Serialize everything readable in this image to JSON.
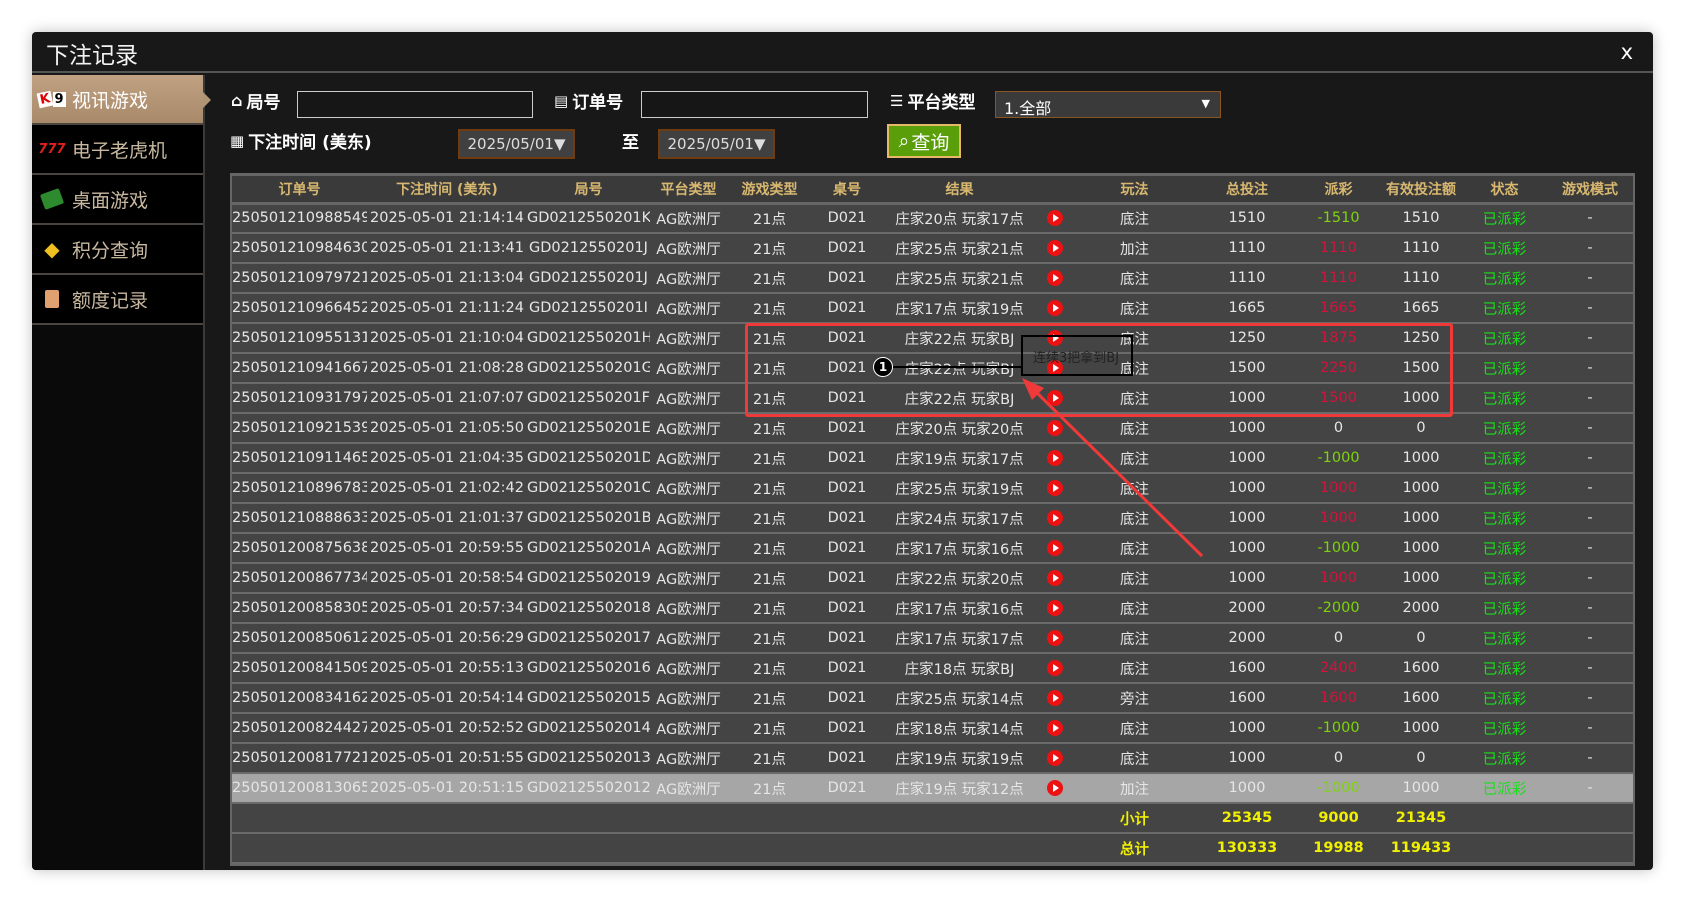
{
  "window": {
    "title": "下注记录",
    "close": "x"
  },
  "sidebar": {
    "items": [
      {
        "label": "视讯游戏",
        "icon": "playing-cards-icon",
        "active": true
      },
      {
        "label": "电子老虎机",
        "icon": "slot-777-icon"
      },
      {
        "label": "桌面游戏",
        "icon": "table-chips-icon"
      },
      {
        "label": "积分查询",
        "icon": "diamond-icon"
      },
      {
        "label": "额度记录",
        "icon": "document-icon"
      }
    ]
  },
  "filters": {
    "round_label": "局号",
    "round_value": "",
    "order_label": "订单号",
    "order_value": "",
    "platform_label": "平台类型",
    "platform_value": "1.全部",
    "time_label": "下注时间 (美东)",
    "date_from": "2025/05/01",
    "to_label": "至",
    "date_to": "2025/05/01",
    "query_label": "查询"
  },
  "table": {
    "headers": [
      "订单号",
      "下注时间 (美东)",
      "局号",
      "平台类型",
      "游戏类型",
      "桌号",
      "结果",
      "",
      "玩法",
      "总投注",
      "派彩",
      "有效投注额",
      "状态",
      "游戏模式"
    ],
    "rows": [
      [
        "250501210988549",
        "2025-05-01 21:14:14",
        "GD0212550201K",
        "AG欧洲厅",
        "21点",
        "D021",
        "庄家20点 玩家17点",
        "底注",
        "1510",
        "-1510",
        "1510",
        "已派彩",
        "-"
      ],
      [
        "250501210984630",
        "2025-05-01 21:13:41",
        "GD0212550201J",
        "AG欧洲厅",
        "21点",
        "D021",
        "庄家25点 玩家21点",
        "加注",
        "1110",
        "1110",
        "1110",
        "已派彩",
        "-"
      ],
      [
        "250501210979721",
        "2025-05-01 21:13:04",
        "GD0212550201J",
        "AG欧洲厅",
        "21点",
        "D021",
        "庄家25点 玩家21点",
        "底注",
        "1110",
        "1110",
        "1110",
        "已派彩",
        "-"
      ],
      [
        "250501210966452",
        "2025-05-01 21:11:24",
        "GD0212550201I",
        "AG欧洲厅",
        "21点",
        "D021",
        "庄家17点 玩家19点",
        "底注",
        "1665",
        "1665",
        "1665",
        "已派彩",
        "-"
      ],
      [
        "250501210955131",
        "2025-05-01 21:10:04",
        "GD0212550201H",
        "AG欧洲厅",
        "21点",
        "D021",
        "庄家22点 玩家BJ",
        "底注",
        "1250",
        "1875",
        "1250",
        "已派彩",
        "-"
      ],
      [
        "250501210941667",
        "2025-05-01 21:08:28",
        "GD0212550201G",
        "AG欧洲厅",
        "21点",
        "D021",
        "庄家22点 玩家BJ",
        "底注",
        "1500",
        "2250",
        "1500",
        "已派彩",
        "-"
      ],
      [
        "250501210931797",
        "2025-05-01 21:07:07",
        "GD0212550201F",
        "AG欧洲厅",
        "21点",
        "D021",
        "庄家22点 玩家BJ",
        "底注",
        "1000",
        "1500",
        "1000",
        "已派彩",
        "-"
      ],
      [
        "250501210921539",
        "2025-05-01 21:05:50",
        "GD0212550201E",
        "AG欧洲厅",
        "21点",
        "D021",
        "庄家20点 玩家20点",
        "底注",
        "1000",
        "0",
        "0",
        "已派彩",
        "-"
      ],
      [
        "250501210911465",
        "2025-05-01 21:04:35",
        "GD0212550201D",
        "AG欧洲厅",
        "21点",
        "D021",
        "庄家19点 玩家17点",
        "底注",
        "1000",
        "-1000",
        "1000",
        "已派彩",
        "-"
      ],
      [
        "250501210896783",
        "2025-05-01 21:02:42",
        "GD0212550201C",
        "AG欧洲厅",
        "21点",
        "D021",
        "庄家25点 玩家19点",
        "底注",
        "1000",
        "1000",
        "1000",
        "已派彩",
        "-"
      ],
      [
        "250501210888633",
        "2025-05-01 21:01:37",
        "GD0212550201B",
        "AG欧洲厅",
        "21点",
        "D021",
        "庄家24点 玩家17点",
        "底注",
        "1000",
        "1000",
        "1000",
        "已派彩",
        "-"
      ],
      [
        "250501200875638",
        "2025-05-01 20:59:55",
        "GD0212550201A",
        "AG欧洲厅",
        "21点",
        "D021",
        "庄家17点 玩家16点",
        "底注",
        "1000",
        "-1000",
        "1000",
        "已派彩",
        "-"
      ],
      [
        "250501200867734",
        "2025-05-01 20:58:54",
        "GD02125502019",
        "AG欧洲厅",
        "21点",
        "D021",
        "庄家22点 玩家20点",
        "底注",
        "1000",
        "1000",
        "1000",
        "已派彩",
        "-"
      ],
      [
        "250501200858305",
        "2025-05-01 20:57:34",
        "GD02125502018",
        "AG欧洲厅",
        "21点",
        "D021",
        "庄家17点 玩家16点",
        "底注",
        "2000",
        "-2000",
        "2000",
        "已派彩",
        "-"
      ],
      [
        "250501200850612",
        "2025-05-01 20:56:29",
        "GD02125502017",
        "AG欧洲厅",
        "21点",
        "D021",
        "庄家17点 玩家17点",
        "底注",
        "2000",
        "0",
        "0",
        "已派彩",
        "-"
      ],
      [
        "250501200841509",
        "2025-05-01 20:55:13",
        "GD02125502016",
        "AG欧洲厅",
        "21点",
        "D021",
        "庄家18点 玩家BJ",
        "底注",
        "1600",
        "2400",
        "1600",
        "已派彩",
        "-"
      ],
      [
        "250501200834162",
        "2025-05-01 20:54:14",
        "GD02125502015",
        "AG欧洲厅",
        "21点",
        "D021",
        "庄家25点 玩家14点",
        "旁注",
        "1600",
        "1600",
        "1600",
        "已派彩",
        "-"
      ],
      [
        "250501200824427",
        "2025-05-01 20:52:52",
        "GD02125502014",
        "AG欧洲厅",
        "21点",
        "D021",
        "庄家18点 玩家14点",
        "底注",
        "1000",
        "-1000",
        "1000",
        "已派彩",
        "-"
      ],
      [
        "250501200817721",
        "2025-05-01 20:51:55",
        "GD02125502013",
        "AG欧洲厅",
        "21点",
        "D021",
        "庄家19点 玩家19点",
        "底注",
        "1000",
        "0",
        "0",
        "已派彩",
        "-"
      ],
      [
        "250501200813065",
        "2025-05-01 20:51:15",
        "GD02125502012",
        "AG欧洲厅",
        "21点",
        "D021",
        "庄家19点 玩家12点",
        "加注",
        "1000",
        "-1000",
        "1000",
        "已派彩",
        "-"
      ]
    ],
    "subtotal": {
      "label": "小计",
      "total_bet": "25345",
      "payout": "9000",
      "valid_bet": "21345"
    },
    "total": {
      "label": "总计",
      "total_bet": "130333",
      "payout": "19988",
      "valid_bet": "119433"
    }
  },
  "annotation": {
    "marker": "1",
    "note": "连续3把拿到BJ",
    "color": "#f03a3a"
  },
  "colors": {
    "payout_negative": "#7ed40a",
    "payout_positive": "#d4123c",
    "status": "#18e018",
    "totals": "#f0f000",
    "query_button": "#5a9e0a"
  }
}
